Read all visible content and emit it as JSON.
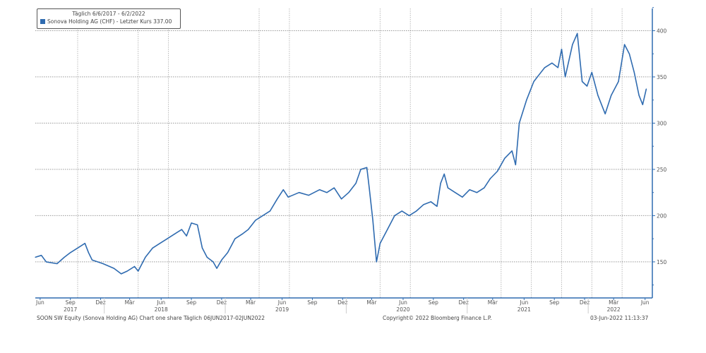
{
  "chart_data": {
    "type": "line",
    "title": "Täglich 6/6/2017 - 6/2/2022",
    "legend": [
      {
        "label": "Sonova Holding AG (CHF) - Letzter Kurs 337.00",
        "color": "#2f6bb0"
      }
    ],
    "legend_position": "top-left",
    "xlabel": "",
    "ylabel": "",
    "ylim": [
      111,
      424
    ],
    "xlim": [
      2017.43,
      2022.53
    ],
    "yticks": [
      150,
      200,
      250,
      300,
      350,
      400
    ],
    "xticks": [
      {
        "t": 2017.47,
        "label": "Jun"
      },
      {
        "t": 2017.72,
        "label": "Sep"
      },
      {
        "t": 2017.97,
        "label": "Dez"
      },
      {
        "t": 2018.21,
        "label": "Mär"
      },
      {
        "t": 2018.47,
        "label": "Jun"
      },
      {
        "t": 2018.72,
        "label": "Sep"
      },
      {
        "t": 2018.97,
        "label": "Dez"
      },
      {
        "t": 2019.21,
        "label": "Mär"
      },
      {
        "t": 2019.47,
        "label": "Jun"
      },
      {
        "t": 2019.72,
        "label": "Sep"
      },
      {
        "t": 2019.97,
        "label": "Dez"
      },
      {
        "t": 2020.21,
        "label": "Mär"
      },
      {
        "t": 2020.47,
        "label": "Jun"
      },
      {
        "t": 2020.72,
        "label": "Sep"
      },
      {
        "t": 2020.97,
        "label": "Dez"
      },
      {
        "t": 2021.21,
        "label": "Mär"
      },
      {
        "t": 2021.47,
        "label": "Jun"
      },
      {
        "t": 2021.72,
        "label": "Sep"
      },
      {
        "t": 2021.97,
        "label": "Dez"
      },
      {
        "t": 2022.21,
        "label": "Mär"
      },
      {
        "t": 2022.47,
        "label": "Jun"
      }
    ],
    "year_labels": [
      {
        "t": 2017.72,
        "label": "2017"
      },
      {
        "t": 2018.47,
        "label": "2018"
      },
      {
        "t": 2019.47,
        "label": "2019"
      },
      {
        "t": 2020.47,
        "label": "2020"
      },
      {
        "t": 2021.47,
        "label": "2021"
      },
      {
        "t": 2022.21,
        "label": "2022"
      }
    ],
    "grid": true,
    "series": [
      {
        "name": "Sonova Holding AG (CHF)",
        "points": [
          [
            2017.43,
            155
          ],
          [
            2017.48,
            157
          ],
          [
            2017.52,
            150
          ],
          [
            2017.61,
            148
          ],
          [
            2017.67,
            155
          ],
          [
            2017.72,
            160
          ],
          [
            2017.78,
            165
          ],
          [
            2017.84,
            170
          ],
          [
            2017.87,
            160
          ],
          [
            2017.9,
            152
          ],
          [
            2017.99,
            148
          ],
          [
            2018.08,
            143
          ],
          [
            2018.14,
            137
          ],
          [
            2018.19,
            140
          ],
          [
            2018.25,
            145
          ],
          [
            2018.28,
            140
          ],
          [
            2018.34,
            155
          ],
          [
            2018.4,
            165
          ],
          [
            2018.46,
            170
          ],
          [
            2018.52,
            175
          ],
          [
            2018.58,
            180
          ],
          [
            2018.64,
            185
          ],
          [
            2018.68,
            178
          ],
          [
            2018.72,
            192
          ],
          [
            2018.77,
            190
          ],
          [
            2018.81,
            165
          ],
          [
            2018.85,
            155
          ],
          [
            2018.9,
            150
          ],
          [
            2018.93,
            143
          ],
          [
            2018.97,
            152
          ],
          [
            2019.02,
            160
          ],
          [
            2019.08,
            175
          ],
          [
            2019.14,
            180
          ],
          [
            2019.19,
            185
          ],
          [
            2019.25,
            195
          ],
          [
            2019.31,
            200
          ],
          [
            2019.37,
            205
          ],
          [
            2019.43,
            218
          ],
          [
            2019.48,
            228
          ],
          [
            2019.52,
            220
          ],
          [
            2019.61,
            225
          ],
          [
            2019.69,
            222
          ],
          [
            2019.78,
            228
          ],
          [
            2019.84,
            225
          ],
          [
            2019.9,
            230
          ],
          [
            2019.96,
            218
          ],
          [
            2020.02,
            225
          ],
          [
            2020.08,
            235
          ],
          [
            2020.12,
            250
          ],
          [
            2020.17,
            252
          ],
          [
            2020.19,
            230
          ],
          [
            2020.22,
            195
          ],
          [
            2020.25,
            150
          ],
          [
            2020.28,
            170
          ],
          [
            2020.34,
            185
          ],
          [
            2020.4,
            200
          ],
          [
            2020.46,
            205
          ],
          [
            2020.52,
            200
          ],
          [
            2020.58,
            205
          ],
          [
            2020.64,
            212
          ],
          [
            2020.7,
            215
          ],
          [
            2020.75,
            210
          ],
          [
            2020.78,
            235
          ],
          [
            2020.81,
            245
          ],
          [
            2020.84,
            230
          ],
          [
            2020.9,
            225
          ],
          [
            2020.96,
            220
          ],
          [
            2021.02,
            228
          ],
          [
            2021.08,
            225
          ],
          [
            2021.14,
            230
          ],
          [
            2021.19,
            240
          ],
          [
            2021.25,
            248
          ],
          [
            2021.31,
            262
          ],
          [
            2021.37,
            270
          ],
          [
            2021.4,
            255
          ],
          [
            2021.43,
            300
          ],
          [
            2021.49,
            325
          ],
          [
            2021.55,
            345
          ],
          [
            2021.58,
            350
          ],
          [
            2021.64,
            360
          ],
          [
            2021.7,
            365
          ],
          [
            2021.75,
            360
          ],
          [
            2021.78,
            380
          ],
          [
            2021.81,
            350
          ],
          [
            2021.87,
            385
          ],
          [
            2021.91,
            397
          ],
          [
            2021.95,
            345
          ],
          [
            2021.99,
            340
          ],
          [
            2022.03,
            355
          ],
          [
            2022.08,
            330
          ],
          [
            2022.14,
            310
          ],
          [
            2022.19,
            330
          ],
          [
            2022.25,
            345
          ],
          [
            2022.3,
            385
          ],
          [
            2022.34,
            375
          ],
          [
            2022.38,
            355
          ],
          [
            2022.42,
            330
          ],
          [
            2022.45,
            320
          ],
          [
            2022.48,
            337
          ]
        ]
      }
    ]
  },
  "footer": {
    "left": "SOON SW Equity (Sonova Holding AG) Chart one share  Täglich 06JUN2017-02JUN2022",
    "center": "Copyright© 2022 Bloomberg Finance L.P.",
    "right": "03-Jun-2022 11:13:37"
  }
}
